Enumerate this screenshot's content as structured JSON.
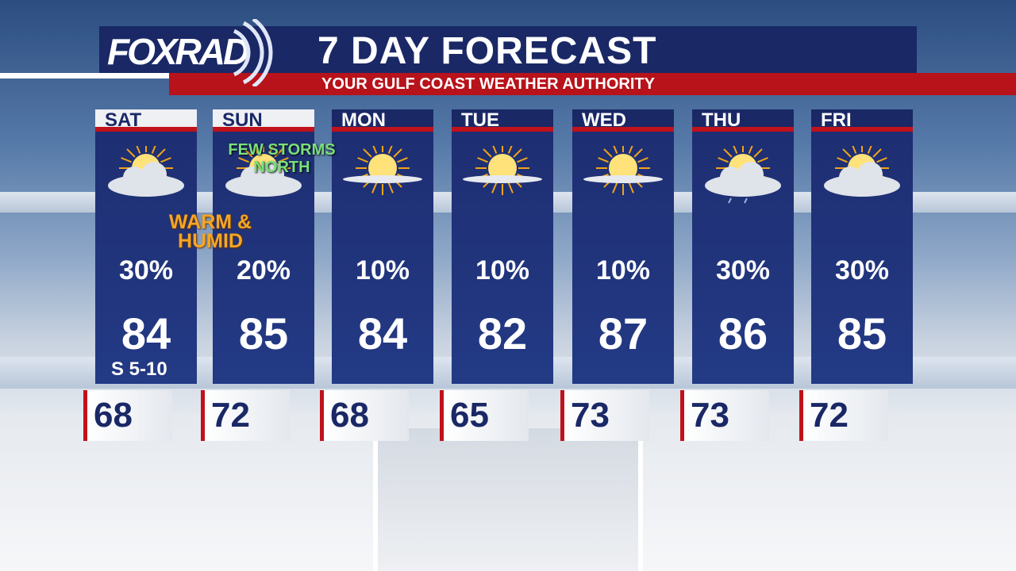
{
  "header": {
    "logo": "FOXRAD",
    "title": "7 DAY FORECAST",
    "subtitle": "YOUR GULF COAST WEATHER AUTHORITY"
  },
  "days": [
    {
      "day": "SAT",
      "icon": "partly-cloudy-icon",
      "pop": "30%",
      "high": "84",
      "low": "68",
      "wind": "S 5-10",
      "highlight": true
    },
    {
      "day": "SUN",
      "icon": "partly-cloudy-icon",
      "pop": "20%",
      "high": "85",
      "low": "72",
      "highlight": true
    },
    {
      "day": "MON",
      "icon": "sunny-icon",
      "pop": "10%",
      "high": "84",
      "low": "68"
    },
    {
      "day": "TUE",
      "icon": "sunny-icon",
      "pop": "10%",
      "high": "82",
      "low": "65"
    },
    {
      "day": "WED",
      "icon": "sunny-icon",
      "pop": "10%",
      "high": "87",
      "low": "73"
    },
    {
      "day": "THU",
      "icon": "partly-cloudy-shower-icon",
      "pop": "30%",
      "high": "86",
      "low": "73"
    },
    {
      "day": "FRI",
      "icon": "partly-cloudy-icon",
      "pop": "30%",
      "high": "85",
      "low": "72"
    }
  ],
  "notes": {
    "sun": "FEW STORMS NORTH",
    "sat": "WARM & HUMID"
  },
  "colors": {
    "navy": "#1a2866",
    "red": "#c0121a",
    "note_green": "#7be07b",
    "note_orange": "#f5a623"
  }
}
